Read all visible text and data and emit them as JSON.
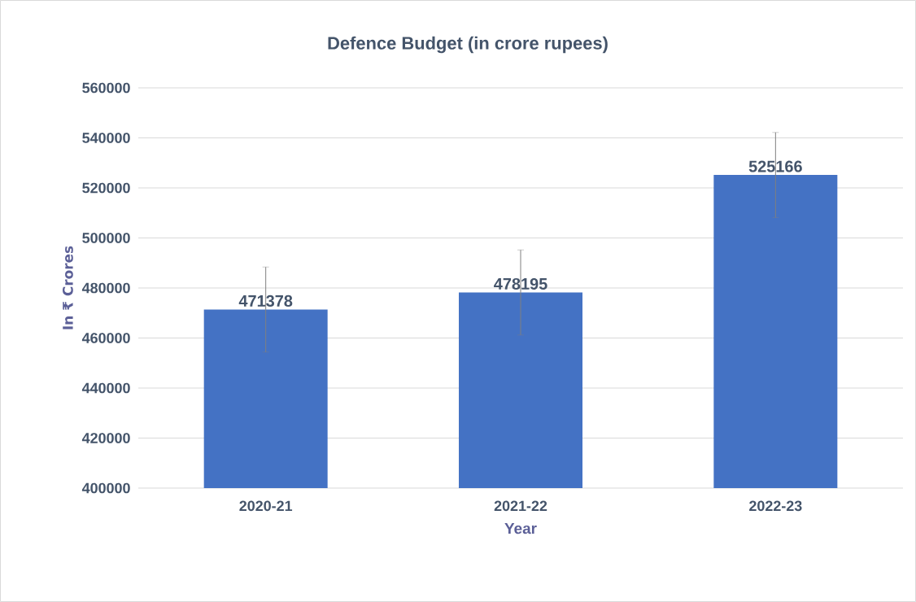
{
  "chart_data": {
    "type": "bar",
    "title": "Defence Budget (in crore rupees)",
    "xlabel": "Year",
    "ylabel": "In ₹ Crores",
    "categories": [
      "2020-21",
      "2021-22",
      "2022-23"
    ],
    "values": [
      471378,
      478195,
      525166
    ],
    "errors": [
      17000,
      17000,
      17000
    ],
    "color": "#4472c4",
    "ylim": [
      400000,
      560000
    ],
    "yticks": [
      400000,
      420000,
      440000,
      460000,
      480000,
      500000,
      520000,
      540000,
      560000
    ],
    "grid": "y",
    "data_labels": true
  }
}
